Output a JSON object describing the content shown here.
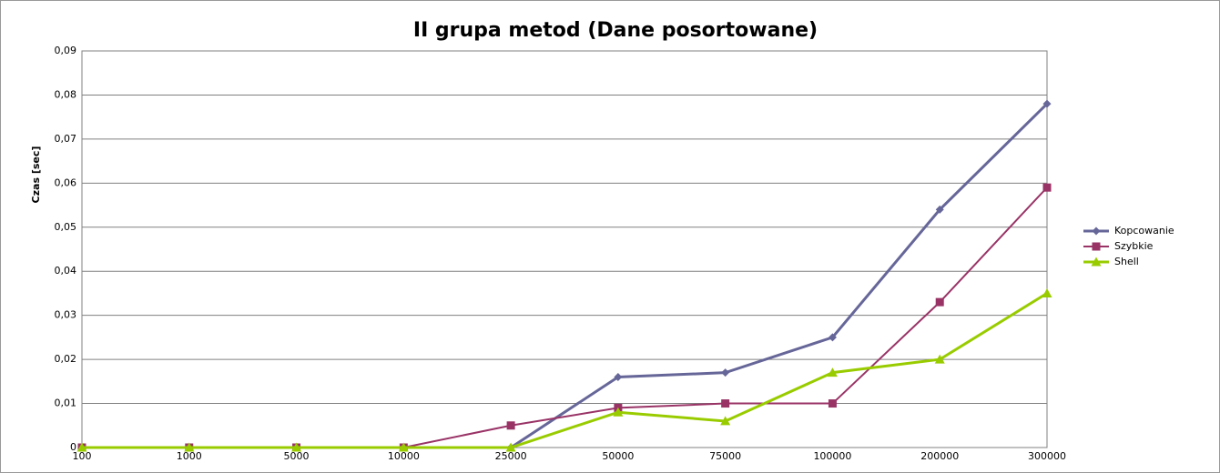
{
  "chart_data": {
    "type": "line",
    "title": "II grupa metod (Dane posortowane)",
    "y_label": "Czas [sec]",
    "categories": [
      "100",
      "1000",
      "5000",
      "10000",
      "25000",
      "50000",
      "75000",
      "100000",
      "200000",
      "300000"
    ],
    "series": [
      {
        "name": "Kopcowanie",
        "color": "#666699",
        "marker": "diamond",
        "values": [
          0,
          0,
          0,
          0,
          0,
          0.016,
          0.017,
          0.025,
          0.054,
          0.078
        ]
      },
      {
        "name": "Szybkie",
        "color": "#993366",
        "marker": "square",
        "values": [
          0,
          0,
          0,
          0,
          0.005,
          0.009,
          0.01,
          0.01,
          0.033,
          0.059
        ]
      },
      {
        "name": "Shell",
        "color": "#99cc00",
        "marker": "triangle",
        "values": [
          0,
          0,
          0,
          0,
          0,
          0.008,
          0.006,
          0.017,
          0.02,
          0.035
        ]
      }
    ],
    "ylim": [
      0,
      0.09
    ],
    "yticks": [
      0,
      {
        "value": 0.01,
        "label": "0,01"
      },
      {
        "value": 0.02,
        "label": "0,02"
      },
      {
        "value": 0.03,
        "label": "0,03"
      },
      {
        "value": 0.04,
        "label": "0,04"
      },
      {
        "value": 0.05,
        "label": "0,05"
      },
      {
        "value": 0.06,
        "label": "0,06"
      },
      {
        "value": 0.07,
        "label": "0,07"
      },
      {
        "value": 0.08,
        "label": "0,08"
      },
      {
        "value": 0.09,
        "label": "0,09"
      }
    ],
    "grid": true,
    "legend": "right"
  }
}
